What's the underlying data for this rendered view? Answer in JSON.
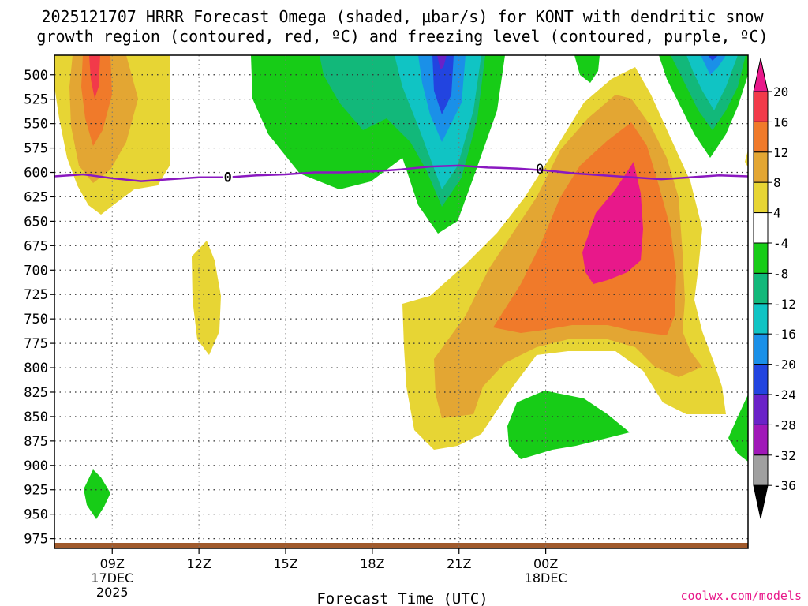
{
  "chart_data": {
    "type": "contour",
    "title_line1": "2025121707 HRRR Forecast Omega (shaded, µbar/s) for KONT with dendritic snow",
    "title_line2": "growth region (contoured, red, ºC) and freezing level (contoured, purple, ºC)",
    "xlabel": "Forecast Time (UTC)",
    "credit": "coolwx.com/models",
    "ylim": [
      985,
      480
    ],
    "y_ticks": [
      500,
      525,
      550,
      575,
      600,
      625,
      650,
      675,
      700,
      725,
      750,
      775,
      800,
      825,
      850,
      875,
      900,
      925,
      950,
      975
    ],
    "xlim": [
      7,
      31
    ],
    "x_ticks": [
      {
        "hour": 9,
        "label": "09Z",
        "sub1": "17DEC",
        "sub2": "2025"
      },
      {
        "hour": 12,
        "label": "12Z",
        "sub1": "",
        "sub2": ""
      },
      {
        "hour": 15,
        "label": "15Z",
        "sub1": "",
        "sub2": ""
      },
      {
        "hour": 18,
        "label": "18Z",
        "sub1": "",
        "sub2": ""
      },
      {
        "hour": 21,
        "label": "21Z",
        "sub1": "",
        "sub2": ""
      },
      {
        "hour": 24,
        "label": "00Z",
        "sub1": "18DEC",
        "sub2": ""
      }
    ],
    "colorbar": {
      "tick_labels": [
        "20",
        "16",
        "12",
        "8",
        "4",
        "-4",
        "-8",
        "-12",
        "-16",
        "-20",
        "-24",
        "-28",
        "-32",
        "-36"
      ],
      "bins": [
        {
          "range": "16 to 20",
          "color": "#f23a4a"
        },
        {
          "range": "12 to 16",
          "color": "#f07a2a"
        },
        {
          "range": "8 to 12",
          "color": "#e3a633"
        },
        {
          "range": "4 to 8",
          "color": "#e7d534"
        },
        {
          "range": "-4 to 4",
          "color": "#ffffff"
        },
        {
          "range": "-8 to -4",
          "color": "#17cc17"
        },
        {
          "range": "-12 to -8",
          "color": "#12b87a"
        },
        {
          "range": "-16 to -12",
          "color": "#10c4c4"
        },
        {
          "range": "-20 to -16",
          "color": "#1a90e8"
        },
        {
          "range": "-24 to -20",
          "color": "#2244e0"
        },
        {
          "range": "-28 to -24",
          "color": "#6a22c8"
        },
        {
          "range": "-32 to -28",
          "color": "#a018b8"
        },
        {
          "range": "-36 to -32",
          "color": "#a0a0a0"
        }
      ],
      "top_arrow_color": "#e8188a",
      "bottom_arrow_color": "#000000"
    },
    "freezing_level": {
      "label": "0",
      "color": "#8a18c0",
      "points": [
        [
          7,
          604
        ],
        [
          8,
          602
        ],
        [
          9,
          606
        ],
        [
          10,
          609
        ],
        [
          11,
          607
        ],
        [
          12,
          605
        ],
        [
          13,
          605
        ],
        [
          14,
          603
        ],
        [
          15,
          602
        ],
        [
          16,
          600
        ],
        [
          17,
          600
        ],
        [
          18,
          599
        ],
        [
          19,
          597
        ],
        [
          20,
          594
        ],
        [
          21,
          593
        ],
        [
          22,
          595
        ],
        [
          23,
          596
        ],
        [
          24,
          598
        ],
        [
          25,
          601
        ],
        [
          26,
          603
        ],
        [
          27,
          605
        ],
        [
          28,
          607
        ],
        [
          29,
          605
        ],
        [
          30,
          603
        ],
        [
          31,
          604
        ]
      ]
    },
    "dendritic_label": {
      "label": "0",
      "hour": 23.8,
      "pressure": 597
    }
  }
}
